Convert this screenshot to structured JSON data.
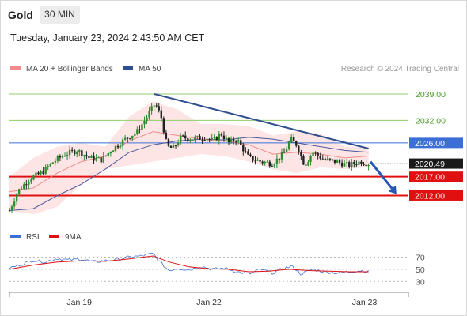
{
  "header": {
    "instrument": "Gold",
    "timeframe": "30 MIN",
    "timestamp": "Tuesday, January 23, 2024 2:43:50 AM CET"
  },
  "chart_data": {
    "type": "candlestick",
    "legend": [
      "MA 20 + Bollinger Bands",
      "MA 50"
    ],
    "credit": "Research © 2024 Trading Central",
    "rsi_legend": [
      "RSI",
      "9MA"
    ],
    "y_range": [
      2006,
      2043
    ],
    "x_labels": [
      "Jan 19",
      "Jan 22",
      "Jan 23"
    ],
    "x_label_positions": [
      0.175,
      0.5,
      0.89
    ],
    "current_price": 2020.49,
    "levels": [
      {
        "value": 2039.0,
        "label": "2039.00",
        "kind": "resistance",
        "color": "#8fcf6a"
      },
      {
        "value": 2032.0,
        "label": "2032.00",
        "kind": "resistance",
        "color": "#8fcf6a"
      },
      {
        "value": 2026.0,
        "label": "2026.00",
        "kind": "pivot",
        "color": "#3b6fd6"
      },
      {
        "value": 2017.0,
        "label": "2017.00",
        "kind": "support",
        "color": "#e01010"
      },
      {
        "value": 2012.0,
        "label": "2012.00",
        "kind": "support",
        "color": "#e01010"
      }
    ],
    "trendline": {
      "from": {
        "x": 0.363,
        "y": 2039.0
      },
      "to": {
        "x": 0.9,
        "y": 2024.5
      }
    },
    "forecast_arrow": {
      "from": {
        "x": 0.905,
        "y": 2021.0
      },
      "to": {
        "x": 0.97,
        "y": 2012.4
      }
    },
    "close_path": [
      [
        0.0,
        2008.0
      ],
      [
        0.02,
        2013.0
      ],
      [
        0.05,
        2016.5
      ],
      [
        0.08,
        2018.0
      ],
      [
        0.11,
        2021.0
      ],
      [
        0.14,
        2023.0
      ],
      [
        0.17,
        2024.0
      ],
      [
        0.2,
        2022.0
      ],
      [
        0.23,
        2021.5
      ],
      [
        0.26,
        2024.5
      ],
      [
        0.29,
        2027.0
      ],
      [
        0.32,
        2029.0
      ],
      [
        0.345,
        2033.0
      ],
      [
        0.365,
        2036.5
      ],
      [
        0.38,
        2033.0
      ],
      [
        0.395,
        2025.0
      ],
      [
        0.41,
        2024.5
      ],
      [
        0.43,
        2027.5
      ],
      [
        0.46,
        2027.0
      ],
      [
        0.49,
        2027.5
      ],
      [
        0.51,
        2026.5
      ],
      [
        0.53,
        2028.5
      ],
      [
        0.55,
        2026.0
      ],
      [
        0.57,
        2027.0
      ],
      [
        0.6,
        2022.0
      ],
      [
        0.63,
        2021.0
      ],
      [
        0.66,
        2020.5
      ],
      [
        0.69,
        2023.5
      ],
      [
        0.705,
        2027.0
      ],
      [
        0.72,
        2025.5
      ],
      [
        0.74,
        2020.0
      ],
      [
        0.76,
        2023.5
      ],
      [
        0.79,
        2021.5
      ],
      [
        0.82,
        2021.0
      ],
      [
        0.85,
        2020.0
      ],
      [
        0.88,
        2021.0
      ],
      [
        0.9,
        2020.49
      ]
    ],
    "ma20_path": [
      [
        0.0,
        2013.0
      ],
      [
        0.06,
        2014.0
      ],
      [
        0.12,
        2018.0
      ],
      [
        0.18,
        2021.0
      ],
      [
        0.24,
        2022.5
      ],
      [
        0.3,
        2026.5
      ],
      [
        0.36,
        2029.0
      ],
      [
        0.42,
        2028.0
      ],
      [
        0.48,
        2027.0
      ],
      [
        0.54,
        2026.5
      ],
      [
        0.6,
        2025.5
      ],
      [
        0.66,
        2023.0
      ],
      [
        0.72,
        2023.5
      ],
      [
        0.78,
        2023.0
      ],
      [
        0.84,
        2022.0
      ],
      [
        0.9,
        2022.5
      ]
    ],
    "ma50_path": [
      [
        0.0,
        2008.0
      ],
      [
        0.06,
        2008.5
      ],
      [
        0.12,
        2012.0
      ],
      [
        0.18,
        2015.0
      ],
      [
        0.24,
        2019.0
      ],
      [
        0.3,
        2023.5
      ],
      [
        0.36,
        2025.5
      ],
      [
        0.42,
        2026.5
      ],
      [
        0.48,
        2027.0
      ],
      [
        0.54,
        2026.8
      ],
      [
        0.6,
        2027.5
      ],
      [
        0.66,
        2027.0
      ],
      [
        0.72,
        2026.0
      ],
      [
        0.78,
        2025.0
      ],
      [
        0.84,
        2024.0
      ],
      [
        0.9,
        2023.5
      ]
    ],
    "bollinger_path": [
      [
        0.0,
        2017.0,
        2008.0
      ],
      [
        0.06,
        2022.0,
        2007.0
      ],
      [
        0.12,
        2025.0,
        2009.0
      ],
      [
        0.18,
        2026.0,
        2015.0
      ],
      [
        0.24,
        2025.0,
        2019.0
      ],
      [
        0.3,
        2033.0,
        2020.0
      ],
      [
        0.36,
        2037.0,
        2021.0
      ],
      [
        0.42,
        2035.0,
        2022.0
      ],
      [
        0.48,
        2031.0,
        2023.0
      ],
      [
        0.54,
        2031.0,
        2022.5
      ],
      [
        0.6,
        2030.5,
        2021.0
      ],
      [
        0.66,
        2028.0,
        2019.0
      ],
      [
        0.72,
        2029.0,
        2018.0
      ],
      [
        0.78,
        2028.5,
        2019.5
      ],
      [
        0.84,
        2025.0,
        2019.0
      ],
      [
        0.9,
        2025.0,
        2019.5
      ]
    ],
    "rsi": {
      "ticks": [
        70,
        50,
        30
      ],
      "range": [
        20,
        85
      ],
      "rsi_path": [
        [
          0.0,
          52
        ],
        [
          0.03,
          58
        ],
        [
          0.06,
          65
        ],
        [
          0.09,
          62
        ],
        [
          0.12,
          68
        ],
        [
          0.15,
          65
        ],
        [
          0.18,
          67
        ],
        [
          0.21,
          62
        ],
        [
          0.24,
          64
        ],
        [
          0.27,
          66
        ],
        [
          0.3,
          70
        ],
        [
          0.33,
          72
        ],
        [
          0.36,
          76
        ],
        [
          0.38,
          60
        ],
        [
          0.4,
          48
        ],
        [
          0.42,
          52
        ],
        [
          0.45,
          49
        ],
        [
          0.48,
          55
        ],
        [
          0.51,
          50
        ],
        [
          0.54,
          52
        ],
        [
          0.57,
          46
        ],
        [
          0.6,
          42
        ],
        [
          0.63,
          50
        ],
        [
          0.66,
          44
        ],
        [
          0.69,
          52
        ],
        [
          0.71,
          55
        ],
        [
          0.73,
          42
        ],
        [
          0.76,
          50
        ],
        [
          0.79,
          46
        ],
        [
          0.82,
          44
        ],
        [
          0.85,
          46
        ],
        [
          0.88,
          48
        ],
        [
          0.9,
          46
        ]
      ],
      "ma9_path": [
        [
          0.0,
          50
        ],
        [
          0.06,
          57
        ],
        [
          0.12,
          62
        ],
        [
          0.18,
          64
        ],
        [
          0.24,
          63
        ],
        [
          0.3,
          67
        ],
        [
          0.36,
          72
        ],
        [
          0.4,
          62
        ],
        [
          0.45,
          54
        ],
        [
          0.5,
          51
        ],
        [
          0.55,
          50
        ],
        [
          0.6,
          46
        ],
        [
          0.65,
          47
        ],
        [
          0.7,
          50
        ],
        [
          0.75,
          48
        ],
        [
          0.8,
          47
        ],
        [
          0.85,
          46
        ],
        [
          0.9,
          46
        ]
      ]
    }
  }
}
